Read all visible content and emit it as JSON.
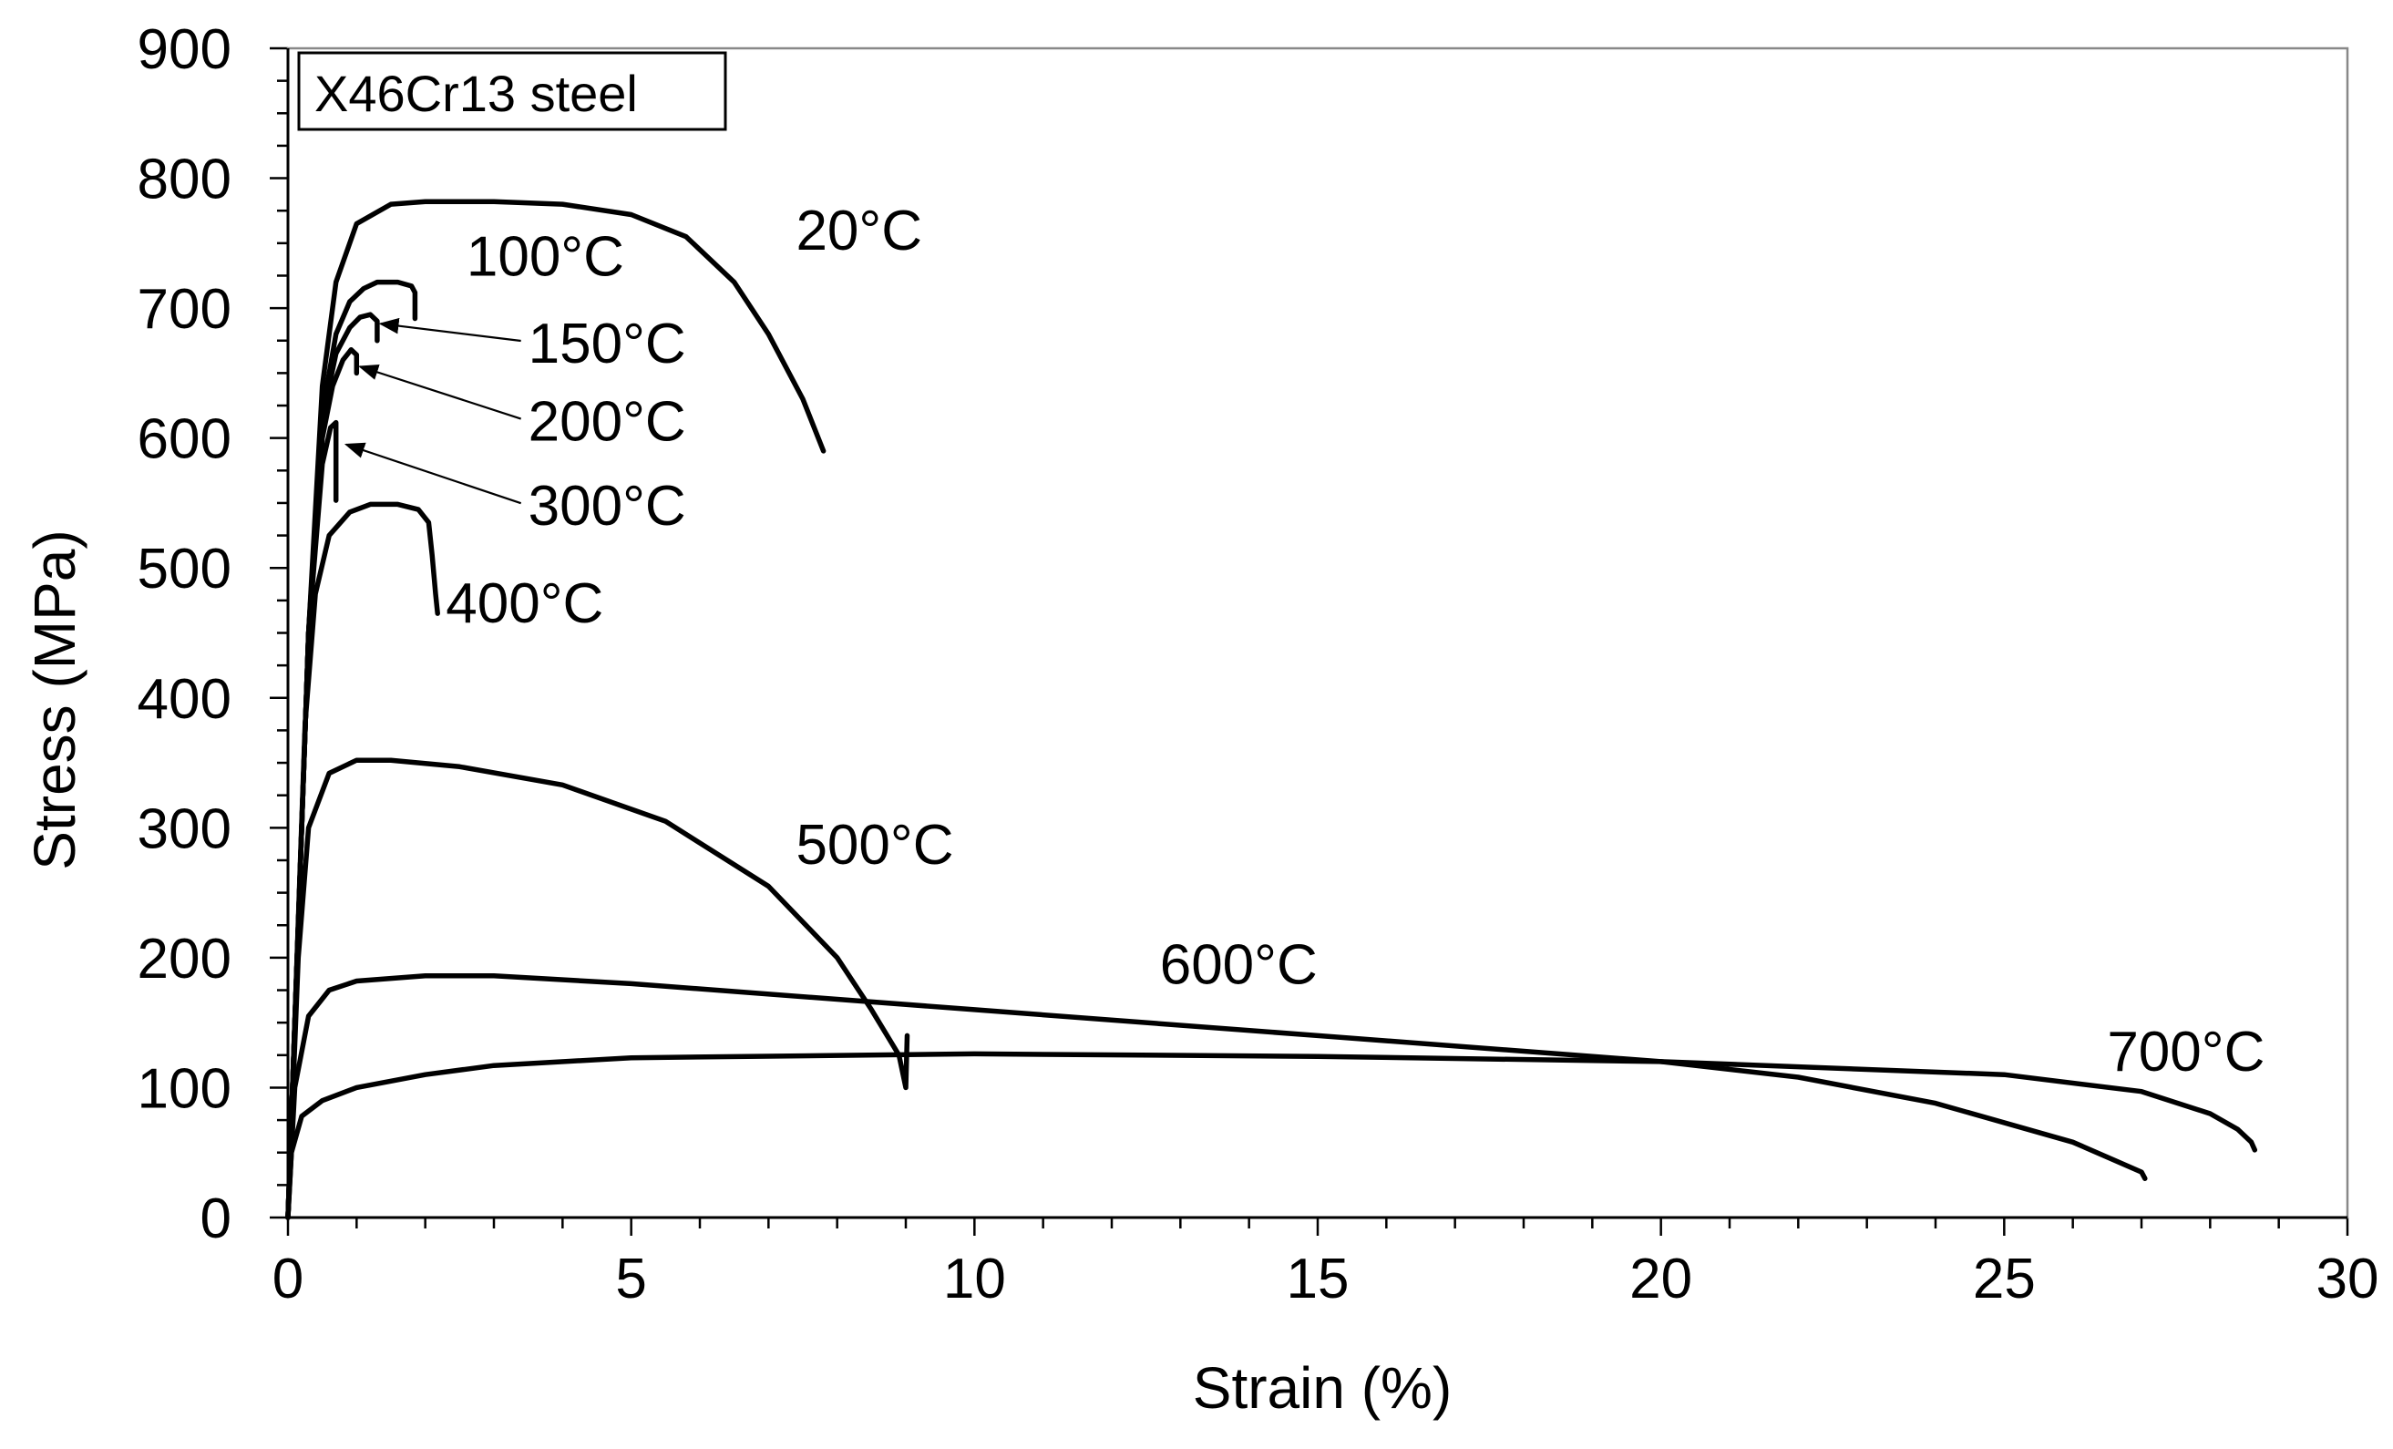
{
  "chart_data": {
    "type": "line",
    "title": "",
    "annotation_box": "X46Cr13 steel",
    "xlabel": "Strain (%)",
    "ylabel": "Stress (MPa)",
    "xlim": [
      0,
      30
    ],
    "ylim": [
      0,
      900
    ],
    "x_ticks": [
      0,
      5,
      10,
      15,
      20,
      25,
      30
    ],
    "y_ticks": [
      0,
      100,
      200,
      300,
      400,
      500,
      600,
      700,
      800,
      900
    ],
    "x_tick_labels": [
      "0",
      "5",
      "10",
      "15",
      "20",
      "25",
      "30"
    ],
    "y_tick_labels": [
      "0",
      "100",
      "200",
      "300",
      "400",
      "500",
      "600",
      "700",
      "800",
      "900"
    ],
    "grid": false,
    "series": [
      {
        "name": "20°C",
        "label": "20°C",
        "label_at": [
          7.4,
          745
        ],
        "x": [
          0,
          0.3,
          0.5,
          0.7,
          1.0,
          1.5,
          2.0,
          3.0,
          4.0,
          5.0,
          5.8,
          6.5,
          7.0,
          7.5,
          7.8
        ],
        "y": [
          0,
          450,
          640,
          720,
          765,
          780,
          782,
          782,
          780,
          772,
          755,
          720,
          680,
          630,
          590
        ]
      },
      {
        "name": "100°C",
        "label": "100°C",
        "label_at": [
          2.6,
          725
        ],
        "x": [
          0,
          0.3,
          0.5,
          0.7,
          0.9,
          1.1,
          1.3,
          1.6,
          1.8,
          1.85,
          1.85
        ],
        "y": [
          0,
          450,
          620,
          680,
          705,
          715,
          720,
          720,
          717,
          712,
          692
        ]
      },
      {
        "name": "150°C",
        "label": "150°C",
        "label_at": [
          3.5,
          658
        ],
        "arrow_to": [
          1.35,
          688
        ],
        "x": [
          0,
          0.3,
          0.5,
          0.7,
          0.9,
          1.05,
          1.2,
          1.3,
          1.3
        ],
        "y": [
          0,
          450,
          615,
          665,
          685,
          693,
          695,
          690,
          675
        ]
      },
      {
        "name": "200°C",
        "label": "200°C",
        "label_at": [
          3.5,
          598
        ],
        "arrow_to": [
          1.05,
          655
        ],
        "x": [
          0,
          0.3,
          0.5,
          0.65,
          0.8,
          0.92,
          1.0,
          1.0
        ],
        "y": [
          0,
          450,
          600,
          640,
          660,
          668,
          664,
          650
        ]
      },
      {
        "name": "300°C",
        "label": "300°C",
        "label_at": [
          3.5,
          533
        ],
        "arrow_to": [
          0.85,
          595
        ],
        "x": [
          0,
          0.3,
          0.5,
          0.62,
          0.7,
          0.7
        ],
        "y": [
          0,
          450,
          580,
          608,
          612,
          552
        ]
      },
      {
        "name": "400°C",
        "label": "400°C",
        "label_at": [
          2.3,
          458
        ],
        "x": [
          0,
          0.25,
          0.4,
          0.6,
          0.9,
          1.2,
          1.6,
          1.9,
          2.05,
          2.1,
          2.15,
          2.18
        ],
        "y": [
          0,
          380,
          480,
          525,
          543,
          549,
          549,
          545,
          535,
          510,
          480,
          465
        ]
      },
      {
        "name": "500°C",
        "label": "500°C",
        "label_at": [
          7.4,
          272
        ],
        "x": [
          0,
          0.15,
          0.3,
          0.6,
          1.0,
          1.5,
          2.5,
          4.0,
          5.5,
          7.0,
          8.0,
          8.5,
          8.9,
          9.0,
          9.02
        ],
        "y": [
          0,
          200,
          300,
          342,
          352,
          352,
          347,
          333,
          305,
          255,
          200,
          160,
          125,
          100,
          140
        ]
      },
      {
        "name": "600°C",
        "label": "600°C",
        "label_at": [
          12.7,
          180
        ],
        "x": [
          0,
          0.1,
          0.3,
          0.6,
          1.0,
          2.0,
          3.0,
          5.0,
          10.0,
          15.0,
          20.0,
          22.0,
          24.0,
          26.0,
          27.0,
          27.05
        ],
        "y": [
          0,
          100,
          155,
          175,
          182,
          186,
          186,
          180,
          160,
          140,
          120,
          108,
          88,
          58,
          35,
          30
        ]
      },
      {
        "name": "700°C",
        "label": "700°C",
        "label_at": [
          26.5,
          113
        ],
        "x": [
          0,
          0.05,
          0.2,
          0.5,
          1.0,
          2.0,
          3.0,
          5.0,
          10.0,
          15.0,
          20.0,
          25.0,
          27.0,
          28.0,
          28.4,
          28.6,
          28.65
        ],
        "y": [
          0,
          50,
          78,
          90,
          100,
          110,
          117,
          123,
          126,
          124,
          120,
          110,
          97,
          80,
          68,
          58,
          52
        ]
      }
    ]
  }
}
